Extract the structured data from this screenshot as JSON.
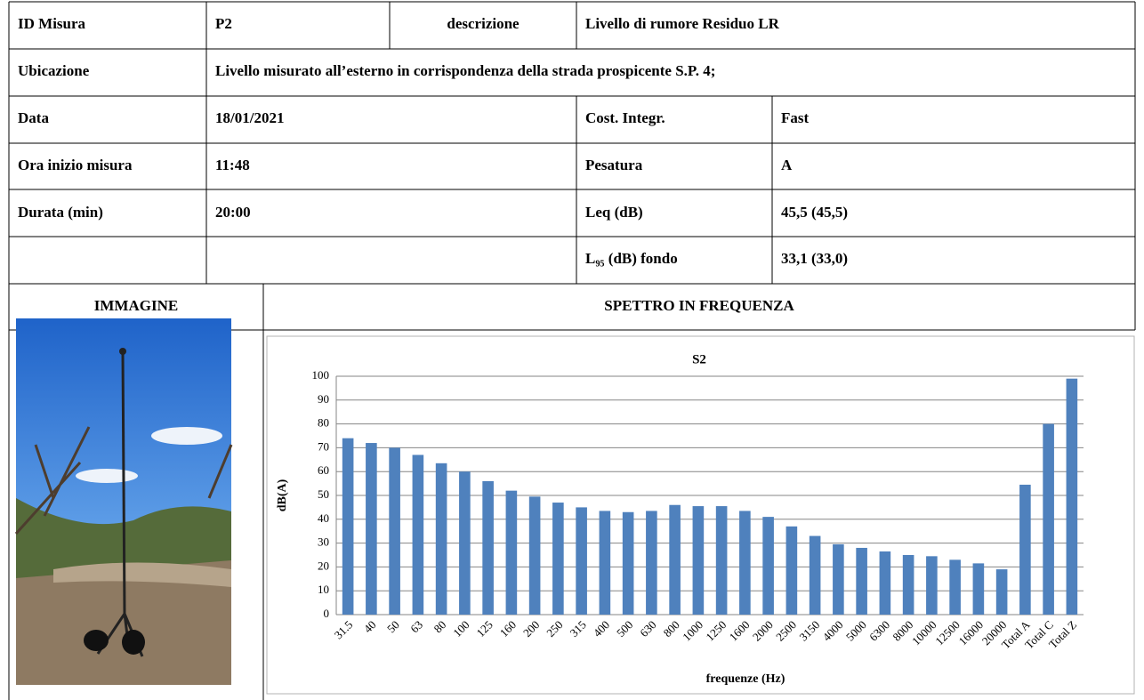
{
  "table": {
    "rows": [
      [
        "ID Misura",
        "P2",
        "descrizione",
        "Livello di rumore Residuo LR"
      ],
      [
        "Ubicazione",
        "Livello misurato all’esterno in corrispondenza della strada prospicente S.P. 4;"
      ],
      [
        "Data",
        "18/01/2021",
        "Cost. Integr.",
        "Fast"
      ],
      [
        "Ora inizio misura",
        "11:48",
        "Pesatura",
        "A"
      ],
      [
        "Durata (min)",
        "20:00",
        "Leq  (dB)",
        "45,5  (45,5)"
      ],
      [
        "L₉₅ (dB) fondo",
        "33,1  (33,0)"
      ]
    ],
    "sections": [
      "IMMAGINE",
      "SPETTRO IN FREQUENZA"
    ]
  },
  "chart_data": {
    "type": "bar",
    "title": "S2",
    "x_label": "frequenze (Hz)",
    "y_label": "dB(A)",
    "categories": [
      "31.5",
      "40",
      "50",
      "63",
      "80",
      "100",
      "125",
      "160",
      "200",
      "250",
      "315",
      "400",
      "500",
      "630",
      "800",
      "1000",
      "1250",
      "1600",
      "2000",
      "2500",
      "3150",
      "4000",
      "5000",
      "6300",
      "8000",
      "10000",
      "12500",
      "16000",
      "20000",
      "Total A",
      "Total C",
      "Total Z"
    ],
    "values": [
      74,
      72,
      70,
      67,
      63.5,
      60,
      56,
      52,
      49.5,
      47,
      45,
      43.5,
      43,
      43.5,
      46,
      45.5,
      45.5,
      43.5,
      41,
      37,
      33,
      29.5,
      28,
      26.5,
      25,
      24.5,
      23,
      21.5,
      19,
      54.5,
      80,
      99
    ],
    "color": "#4f81bd",
    "ylim": [
      0,
      100
    ],
    "yticks": [
      0,
      10,
      20,
      30,
      40,
      50,
      60,
      70,
      80,
      90,
      100
    ],
    "grid": true
  }
}
